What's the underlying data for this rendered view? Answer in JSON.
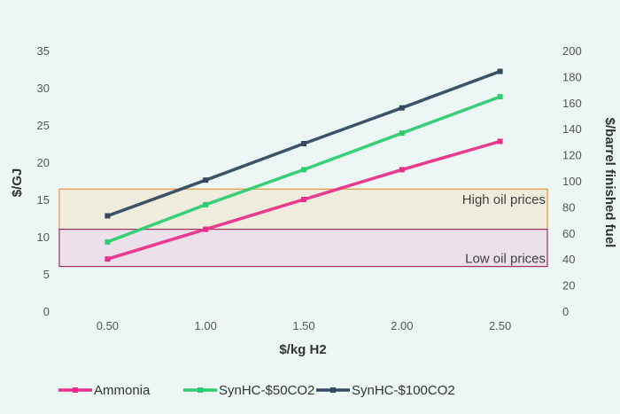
{
  "chart_data": {
    "type": "line",
    "x": [
      0.5,
      1.0,
      1.5,
      2.0,
      2.5
    ],
    "x_tick_labels": [
      "0.50",
      "1.00",
      "1.50",
      "2.00",
      "2.50"
    ],
    "xlabel": "$/kg H2",
    "ylabel": "$/GJ",
    "y2label": "$/barrel finished fuel",
    "ylim": [
      0,
      35
    ],
    "y_ticks": [
      0,
      5,
      10,
      15,
      20,
      25,
      30,
      35
    ],
    "y2lim": [
      0,
      200
    ],
    "y2_ticks": [
      0,
      20,
      40,
      60,
      80,
      100,
      120,
      140,
      160,
      180,
      200
    ],
    "grid": false,
    "legend_position": "bottom",
    "series": [
      {
        "name": "Ammonia",
        "values": [
          7.0,
          11.0,
          15.0,
          19.0,
          22.8
        ],
        "color": "#e8308a"
      },
      {
        "name": "SynHC-$50CO2",
        "values": [
          9.3,
          14.3,
          19.0,
          23.9,
          28.8
        ],
        "color": "#2ecc71"
      },
      {
        "name": "SynHC-$100CO2",
        "values": [
          12.8,
          17.6,
          22.5,
          27.3,
          32.2
        ],
        "color": "#34495e"
      }
    ],
    "bands": [
      {
        "label": "High oil prices",
        "y_from": 11.0,
        "y_to": 16.4,
        "fill": "#eeead7",
        "stroke": "#e8953a"
      },
      {
        "label": "Low oil prices",
        "y_from": 6.0,
        "y_to": 11.0,
        "fill": "#ecdce7",
        "stroke": "#a0325a"
      }
    ]
  }
}
